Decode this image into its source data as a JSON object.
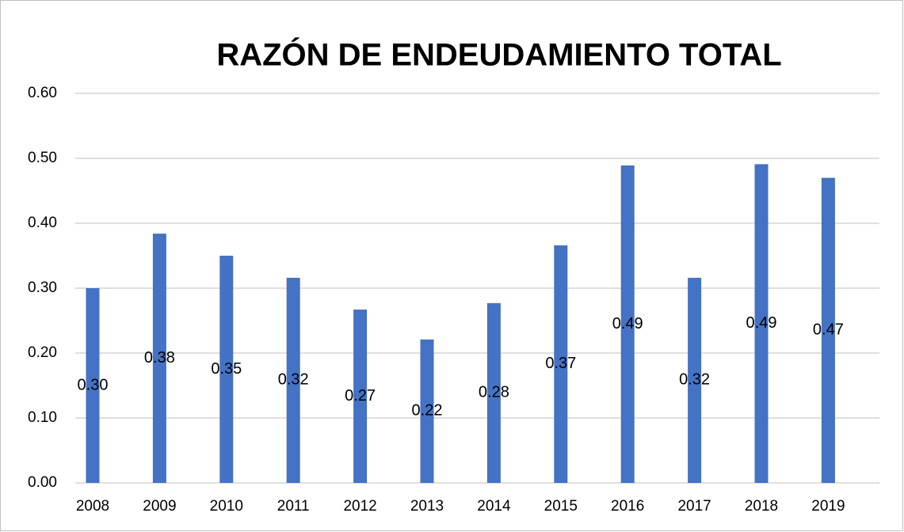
{
  "chart_data": {
    "type": "bar",
    "title": "RAZÓN DE ENDEUDAMIENTO TOTAL",
    "categories": [
      "2008",
      "2009",
      "2010",
      "2011",
      "2012",
      "2013",
      "2014",
      "2015",
      "2016",
      "2017",
      "2018",
      "2019"
    ],
    "values": [
      0.3,
      0.384,
      0.35,
      0.316,
      0.267,
      0.221,
      0.277,
      0.366,
      0.489,
      0.316,
      0.491,
      0.47
    ],
    "value_labels": [
      "0.30",
      "0.38",
      "0.35",
      "0.32",
      "0.27",
      "0.22",
      "0.28",
      "0.37",
      "0.49",
      "0.32",
      "0.49",
      "0.47"
    ],
    "color": "#4472c4",
    "ylim": [
      0,
      0.6
    ],
    "yticks": [
      {
        "value": 0,
        "label": "0.00"
      },
      {
        "value": 0.1,
        "label": "0.10"
      },
      {
        "value": 0.2,
        "label": "0.20"
      },
      {
        "value": 0.3,
        "label": "0.30"
      },
      {
        "value": 0.4,
        "label": "0.40"
      },
      {
        "value": 0.5,
        "label": "0.50"
      },
      {
        "value": 0.6,
        "label": "0.60"
      }
    ],
    "grid": true
  }
}
